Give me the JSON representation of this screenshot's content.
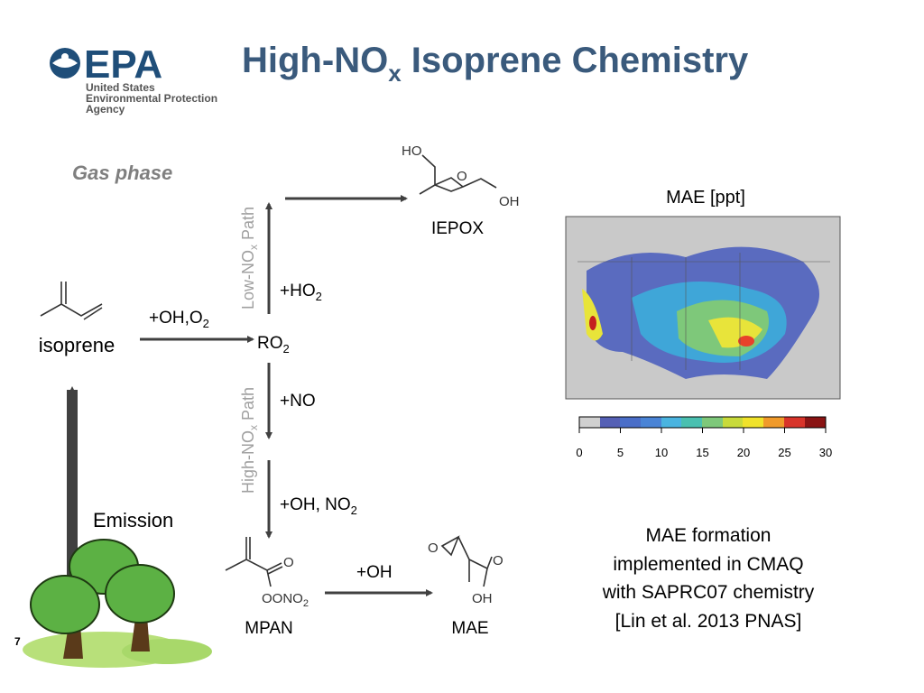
{
  "logo": {
    "name": "EPA",
    "lines": [
      "United States",
      "Environmental Protection",
      "Agency"
    ]
  },
  "title": [
    "High-NO",
    "x",
    " Isoprene Chemistry"
  ],
  "section_label": "Gas phase",
  "nodes": {
    "isoprene": "isoprene",
    "ro2": [
      "RO",
      "2"
    ],
    "iepox": "IEPOX",
    "mpan": "MPAN",
    "mae": "MAE",
    "emission": "Emission"
  },
  "reactions": {
    "oh_o2": [
      "+OH,O",
      "2"
    ],
    "ho2": [
      "+HO",
      "2"
    ],
    "no": "+NO",
    "oh_no2": [
      "+OH, NO",
      "2"
    ],
    "oh": "+OH"
  },
  "paths": {
    "low": [
      "Low-NO",
      "x",
      " Path"
    ],
    "high": [
      "High-NO",
      "x",
      " Path"
    ]
  },
  "structure_labels": [
    "HO",
    "O",
    "OH",
    "O",
    "OONO",
    "2",
    "O",
    "O",
    "OH"
  ],
  "map": {
    "title": "MAE [ppt]",
    "colorbar_ticks": [
      0,
      5,
      10,
      15,
      20,
      25,
      30
    ]
  },
  "caption": [
    "MAE formation",
    "implemented in CMAQ",
    "with SAPRC07 chemistry",
    "[Lin et al. 2013 PNAS]"
  ],
  "page_number": "7"
}
